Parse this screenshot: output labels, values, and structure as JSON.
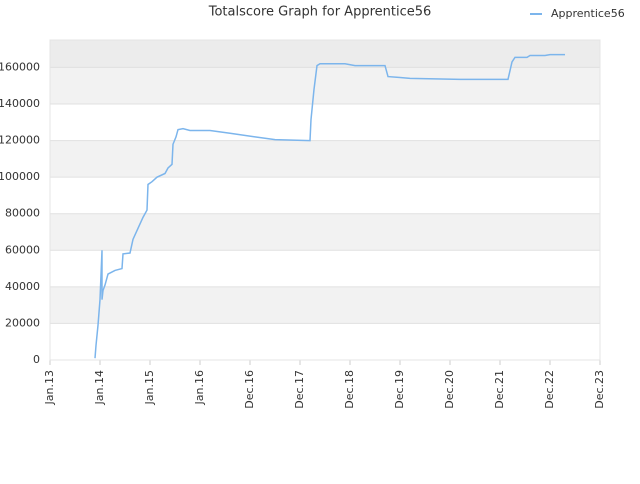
{
  "chart_data": {
    "type": "line",
    "title": "Totalscore Graph for Apprentice56",
    "x": [
      0.9,
      0.92,
      0.96,
      1.0,
      1.04,
      1.04,
      1.06,
      1.1,
      1.16,
      1.3,
      1.44,
      1.46,
      1.6,
      1.66,
      1.76,
      1.86,
      1.94,
      1.96,
      2.04,
      2.14,
      2.3,
      2.36,
      2.44,
      2.46,
      2.52,
      2.56,
      2.66,
      2.8,
      3.2,
      3.6,
      4.1,
      4.5,
      5.2,
      5.22,
      5.28,
      5.34,
      5.4,
      5.9,
      6.1,
      6.7,
      6.76,
      7.0,
      7.2,
      8.2,
      9.16,
      9.24,
      9.3,
      9.54,
      9.6,
      9.9,
      10.0,
      10.3
    ],
    "series": [
      {
        "name": "Apprentice56",
        "color": "#7cb5ec",
        "values": [
          1000,
          8000,
          19000,
          33000,
          60000,
          33000,
          38000,
          41000,
          47000,
          49000,
          50000,
          58000,
          58500,
          66000,
          72000,
          78000,
          82000,
          96000,
          97500,
          100000,
          102000,
          105000,
          107000,
          118000,
          122000,
          126000,
          126500,
          125500,
          125500,
          124000,
          122000,
          120500,
          120000,
          131500,
          148000,
          161000,
          162000,
          162000,
          161000,
          161000,
          155000,
          154500,
          154000,
          153500,
          153500,
          163000,
          165500,
          165500,
          166500,
          166500,
          167000,
          167000
        ]
      }
    ],
    "xlim": [
      0,
      11
    ],
    "xticks": [
      {
        "value": 0,
        "label": "Jan.13"
      },
      {
        "value": 1,
        "label": "Jan.14"
      },
      {
        "value": 2,
        "label": "Jan.15"
      },
      {
        "value": 3,
        "label": "Jan.16"
      },
      {
        "value": 4,
        "label": "Dec.16"
      },
      {
        "value": 5,
        "label": "Dec.17"
      },
      {
        "value": 6,
        "label": "Dec.18"
      },
      {
        "value": 7,
        "label": "Dec.19"
      },
      {
        "value": 8,
        "label": "Dec.20"
      },
      {
        "value": 9,
        "label": "Dec.21"
      },
      {
        "value": 10,
        "label": "Dec.22"
      },
      {
        "value": 11,
        "label": "Dec.23"
      }
    ],
    "ylim": [
      0,
      175000
    ],
    "yticks": [
      0,
      20000,
      40000,
      60000,
      80000,
      100000,
      120000,
      140000,
      160000
    ],
    "grid": true,
    "legend": "top-right"
  }
}
